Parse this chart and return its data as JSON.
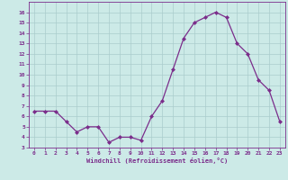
{
  "x": [
    0,
    1,
    2,
    3,
    4,
    5,
    6,
    7,
    8,
    9,
    10,
    11,
    12,
    13,
    14,
    15,
    16,
    17,
    18,
    19,
    20,
    21,
    22,
    23
  ],
  "y": [
    6.5,
    6.5,
    6.5,
    5.5,
    4.5,
    5.0,
    5.0,
    3.5,
    4.0,
    4.0,
    3.7,
    6.0,
    7.5,
    10.5,
    13.5,
    15.0,
    15.5,
    16.0,
    15.5,
    13.0,
    12.0,
    9.5,
    8.5,
    5.5
  ],
  "line_color": "#7b2d8b",
  "marker": "D",
  "marker_size": 2,
  "bg_color": "#cceae7",
  "grid_color": "#aacccc",
  "xlabel": "Windchill (Refroidissement éolien,°C)",
  "xlabel_color": "#7b2d8b",
  "tick_color": "#7b2d8b",
  "ylim": [
    3,
    17
  ],
  "xlim": [
    -0.5,
    23.5
  ],
  "yticks": [
    3,
    4,
    5,
    6,
    7,
    8,
    9,
    10,
    11,
    12,
    13,
    14,
    15,
    16
  ],
  "xticks": [
    0,
    1,
    2,
    3,
    4,
    5,
    6,
    7,
    8,
    9,
    10,
    11,
    12,
    13,
    14,
    15,
    16,
    17,
    18,
    19,
    20,
    21,
    22,
    23
  ]
}
